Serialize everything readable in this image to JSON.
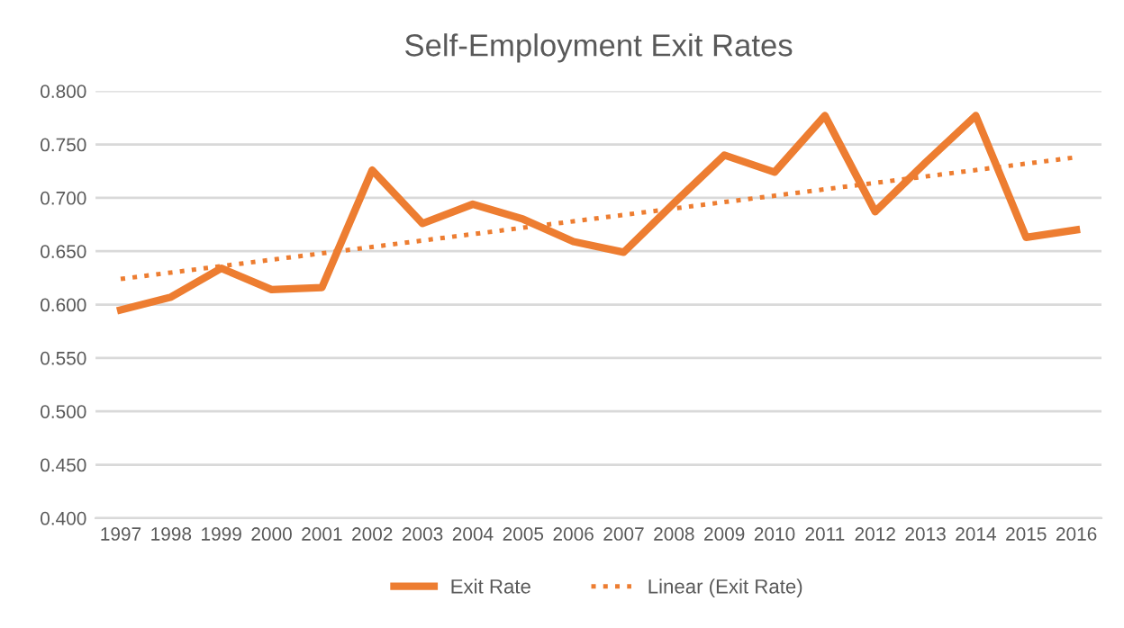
{
  "chart_data": {
    "type": "line",
    "title": "Self-Employment Exit Rates",
    "categories": [
      "1997",
      "1998",
      "1999",
      "2000",
      "2001",
      "2002",
      "2003",
      "2004",
      "2005",
      "2006",
      "2007",
      "2008",
      "2009",
      "2010",
      "2011",
      "2012",
      "2013",
      "2014",
      "2015",
      "2016"
    ],
    "series": [
      {
        "name": "Exit Rate",
        "color": "#ed7d31",
        "line_style": "solid",
        "values": [
          0.595,
          0.607,
          0.634,
          0.614,
          0.616,
          0.726,
          0.676,
          0.694,
          0.68,
          0.659,
          0.649,
          0.695,
          0.74,
          0.724,
          0.777,
          0.687,
          0.733,
          0.777,
          0.663,
          0.67
        ]
      },
      {
        "name": "Linear (Exit Rate)",
        "color": "#ed7d31",
        "line_style": "dotted",
        "values": [
          0.624,
          0.63,
          0.636,
          0.642,
          0.648,
          0.654,
          0.66,
          0.666,
          0.672,
          0.678,
          0.684,
          0.69,
          0.696,
          0.702,
          0.708,
          0.714,
          0.72,
          0.726,
          0.732,
          0.738
        ]
      }
    ],
    "ylim": [
      0.4,
      0.8
    ],
    "yticks": [
      {
        "value": 0.4,
        "label": "0.400"
      },
      {
        "value": 0.45,
        "label": "0.450"
      },
      {
        "value": 0.5,
        "label": "0.500"
      },
      {
        "value": 0.55,
        "label": "0.550"
      },
      {
        "value": 0.6,
        "label": "0.600"
      },
      {
        "value": 0.65,
        "label": "0.650"
      },
      {
        "value": 0.7,
        "label": "0.700"
      },
      {
        "value": 0.75,
        "label": "0.750"
      },
      {
        "value": 0.8,
        "label": "0.800"
      }
    ],
    "grid": "y",
    "legend": "bottom",
    "marker": "none"
  }
}
